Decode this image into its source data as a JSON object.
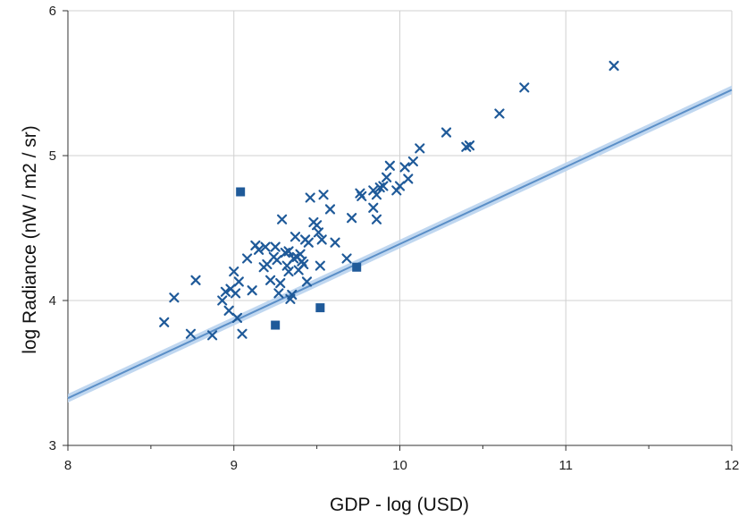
{
  "chart_data": {
    "type": "scatter",
    "title": "",
    "xlabel": "GDP - log (USD)",
    "ylabel": "log Radiance (nW / m2 / sr)",
    "xlim": [
      8,
      12
    ],
    "ylim": [
      3,
      6
    ],
    "xticks": [
      "8",
      "9",
      "10",
      "11",
      "12"
    ],
    "yticks": [
      "3",
      "4",
      "5",
      "6"
    ],
    "grid": true,
    "colors": {
      "marker": "#1f5a99",
      "fit_line": "#5b8fc7",
      "fit_band": "#b9d3ee",
      "grid": "#d0d0d0"
    },
    "fit": {
      "intercept": -0.93,
      "slope": 0.532,
      "band": 0.03
    },
    "series": [
      {
        "marker": "x",
        "x": [
          8.58,
          8.64,
          8.74,
          8.77,
          8.87,
          8.93,
          8.95,
          8.97,
          8.98,
          9.0,
          9.01,
          9.02,
          9.03,
          9.05,
          9.08,
          9.11,
          9.13,
          9.15,
          9.18,
          9.19,
          9.2,
          9.22,
          9.24,
          9.25,
          9.26,
          9.27,
          9.28,
          9.29,
          9.31,
          9.32,
          9.33,
          9.33,
          9.34,
          9.35,
          9.36,
          9.37,
          9.38,
          9.39,
          9.4,
          9.41,
          9.42,
          9.43,
          9.44,
          9.45,
          9.46,
          9.48,
          9.5,
          9.51,
          9.52,
          9.53,
          9.54,
          9.58,
          9.61,
          9.68,
          9.71,
          9.76,
          9.77,
          9.84,
          9.84,
          9.86,
          9.86,
          9.88,
          9.9,
          9.92,
          9.94,
          9.98,
          10.0,
          10.03,
          10.05,
          10.08,
          10.12,
          10.28,
          10.4,
          10.42,
          10.6,
          10.75,
          11.29
        ],
        "y": [
          3.85,
          4.02,
          3.77,
          4.14,
          3.76,
          4.0,
          4.06,
          3.93,
          4.08,
          4.2,
          4.05,
          3.88,
          4.13,
          3.77,
          4.29,
          4.07,
          4.38,
          4.35,
          4.23,
          4.37,
          4.25,
          4.14,
          4.3,
          4.37,
          4.28,
          4.05,
          4.12,
          4.56,
          4.33,
          4.24,
          4.34,
          4.2,
          4.01,
          4.04,
          4.29,
          4.44,
          4.3,
          4.21,
          4.32,
          4.27,
          4.25,
          4.42,
          4.13,
          4.4,
          4.71,
          4.54,
          4.52,
          4.47,
          4.24,
          4.42,
          4.73,
          4.63,
          4.4,
          4.29,
          4.57,
          4.74,
          4.72,
          4.76,
          4.64,
          4.56,
          4.73,
          4.78,
          4.79,
          4.85,
          4.93,
          4.76,
          4.79,
          4.92,
          4.84,
          4.96,
          5.05,
          5.16,
          5.06,
          5.07,
          5.29,
          5.47,
          5.62
        ]
      },
      {
        "marker": "square",
        "x": [
          9.04,
          9.25,
          9.52,
          9.74
        ],
        "y": [
          4.75,
          3.83,
          3.95,
          4.23
        ]
      }
    ]
  }
}
